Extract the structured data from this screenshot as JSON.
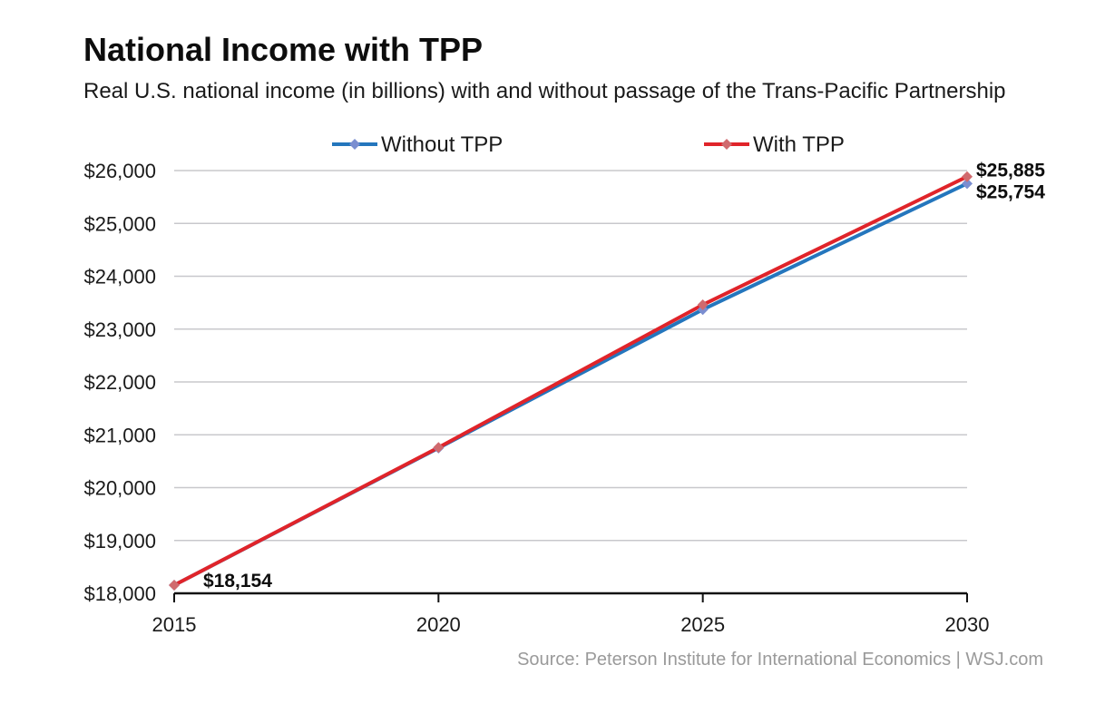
{
  "chart_data": {
    "type": "line",
    "title": "National Income with TPP",
    "subtitle": "Real U.S. national income (in billions) with and without passage of the Trans-Pacific Partnership",
    "xlabel": "",
    "ylabel": "",
    "x": [
      2015,
      2020,
      2025,
      2030
    ],
    "ylim": [
      18000,
      26000
    ],
    "y_ticks": [
      "$18,000",
      "$19,000",
      "$20,000",
      "$21,000",
      "$22,000",
      "$23,000",
      "$24,000",
      "$25,000",
      "$26,000"
    ],
    "x_ticks": [
      "2015",
      "2020",
      "2025",
      "2030"
    ],
    "grid": true,
    "legend_position": "top",
    "series": [
      {
        "name": "Without TPP",
        "color": "#2476bd",
        "marker_color": "#7b8ed0",
        "values": [
          18154,
          20750,
          23370,
          25754
        ]
      },
      {
        "name": "With TPP",
        "color": "#e0242a",
        "marker_color": "#d06a6e",
        "values": [
          18154,
          20760,
          23460,
          25885
        ]
      }
    ],
    "annotations": [
      {
        "text": "$18,154",
        "series": 0,
        "index": 0
      },
      {
        "text": "$25,885",
        "series": 1,
        "index": 3
      },
      {
        "text": "$25,754",
        "series": 0,
        "index": 3
      }
    ],
    "source": "Source: Peterson Institute for International Economics  |  WSJ.com"
  }
}
